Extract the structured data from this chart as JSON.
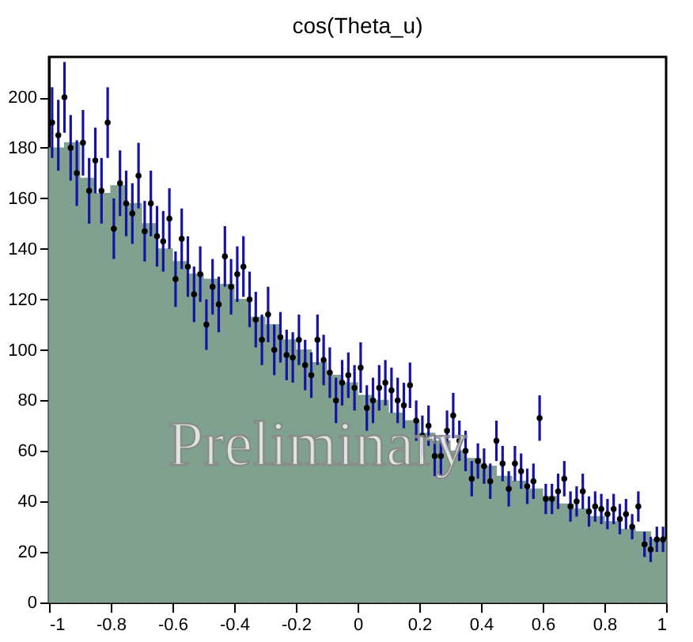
{
  "chart_data": {
    "type": "histogram",
    "title": "cos(Theta_u)",
    "annotations": [
      "Preliminary"
    ],
    "xlim": [
      -1,
      1
    ],
    "xticks": [
      -1,
      -0.8,
      -0.6,
      -0.4,
      -0.2,
      0,
      0.2,
      0.4,
      0.6,
      0.8,
      1
    ],
    "ylim": [
      0,
      216
    ],
    "yticks": [
      0,
      20,
      40,
      60,
      80,
      100,
      120,
      140,
      160,
      180,
      200
    ],
    "grid": false,
    "bins": [
      -1,
      -0.95,
      -0.9,
      -0.85,
      -0.8,
      -0.75,
      -0.7,
      -0.65,
      -0.6,
      -0.55,
      -0.5,
      -0.45,
      -0.4,
      -0.35,
      -0.3,
      -0.25,
      -0.2,
      -0.15,
      -0.1,
      -0.05,
      0,
      0.05,
      0.1,
      0.15,
      0.2,
      0.25,
      0.3,
      0.35,
      0.4,
      0.45,
      0.5,
      0.55,
      0.6,
      0.65,
      0.7,
      0.75,
      0.8,
      0.85,
      0.9,
      0.95,
      1
    ],
    "values": [
      180,
      182,
      168,
      162,
      165,
      158,
      150,
      140,
      135,
      130,
      128,
      126,
      120,
      113,
      110,
      104,
      100,
      95,
      90,
      87,
      82,
      80,
      75,
      72,
      67,
      64,
      60,
      57,
      54,
      50,
      48,
      45,
      42,
      39,
      37,
      34,
      32,
      29,
      28,
      25
    ],
    "color": "#80a090",
    "series": [
      {
        "type": "scatter",
        "color": "#000000",
        "marker": "circle",
        "x": [
          -0.99,
          -0.97,
          -0.95,
          -0.93,
          -0.91,
          -0.89,
          -0.87,
          -0.85,
          -0.83,
          -0.81,
          -0.79,
          -0.77,
          -0.75,
          -0.73,
          -0.71,
          -0.69,
          -0.67,
          -0.65,
          -0.63,
          -0.61,
          -0.59,
          -0.57,
          -0.55,
          -0.53,
          -0.51,
          -0.49,
          -0.47,
          -0.45,
          -0.43,
          -0.41,
          -0.39,
          -0.37,
          -0.35,
          -0.33,
          -0.31,
          -0.29,
          -0.27,
          -0.25,
          -0.23,
          -0.21,
          -0.19,
          -0.17,
          -0.15,
          -0.13,
          -0.11,
          -0.09,
          -0.07,
          -0.05,
          -0.03,
          -0.01,
          0.01,
          0.03,
          0.05,
          0.07,
          0.09,
          0.11,
          0.13,
          0.15,
          0.17,
          0.19,
          0.21,
          0.23,
          0.25,
          0.27,
          0.29,
          0.31,
          0.33,
          0.35,
          0.37,
          0.39,
          0.41,
          0.43,
          0.45,
          0.47,
          0.49,
          0.51,
          0.53,
          0.55,
          0.57,
          0.59,
          0.61,
          0.63,
          0.65,
          0.67,
          0.69,
          0.71,
          0.73,
          0.75,
          0.77,
          0.79,
          0.81,
          0.83,
          0.85,
          0.87,
          0.89,
          0.91,
          0.93,
          0.95,
          0.97,
          0.99
        ],
        "values": [
          190,
          185,
          200,
          180,
          170,
          182,
          163,
          175,
          163,
          190,
          148,
          166,
          158,
          154,
          169,
          147,
          158,
          145,
          143,
          152,
          128,
          144,
          133,
          122,
          130,
          110,
          125,
          118,
          137,
          125,
          130,
          133,
          120,
          112,
          104,
          114,
          100,
          105,
          98,
          97,
          104,
          94,
          90,
          104,
          96,
          91,
          80,
          87,
          90,
          85,
          93,
          77,
          80,
          85,
          87,
          84,
          80,
          78,
          86,
          72,
          66,
          70,
          58,
          58,
          68,
          74,
          64,
          60,
          49,
          56,
          54,
          48,
          64,
          55,
          45,
          55,
          52,
          46,
          48,
          73,
          41,
          41,
          44,
          49,
          38,
          40,
          44,
          36,
          38,
          37,
          35,
          37,
          33,
          35,
          30,
          38,
          23,
          21,
          25,
          25
        ],
        "errors": [
          14,
          14,
          14,
          13,
          13,
          13,
          13,
          13,
          13,
          14,
          12,
          13,
          13,
          12,
          13,
          12,
          13,
          12,
          12,
          12,
          11,
          12,
          12,
          11,
          11,
          10,
          11,
          11,
          12,
          11,
          11,
          12,
          11,
          11,
          10,
          11,
          10,
          10,
          10,
          10,
          10,
          10,
          9,
          10,
          10,
          10,
          9,
          9,
          9,
          9,
          10,
          9,
          9,
          9,
          9,
          9,
          9,
          9,
          9,
          8,
          8,
          8,
          8,
          8,
          8,
          9,
          8,
          8,
          7,
          7,
          7,
          7,
          8,
          7,
          7,
          7,
          7,
          7,
          7,
          9,
          6,
          6,
          7,
          7,
          6,
          6,
          7,
          6,
          6,
          6,
          6,
          6,
          6,
          6,
          5,
          6,
          5,
          5,
          5,
          5
        ]
      }
    ]
  }
}
